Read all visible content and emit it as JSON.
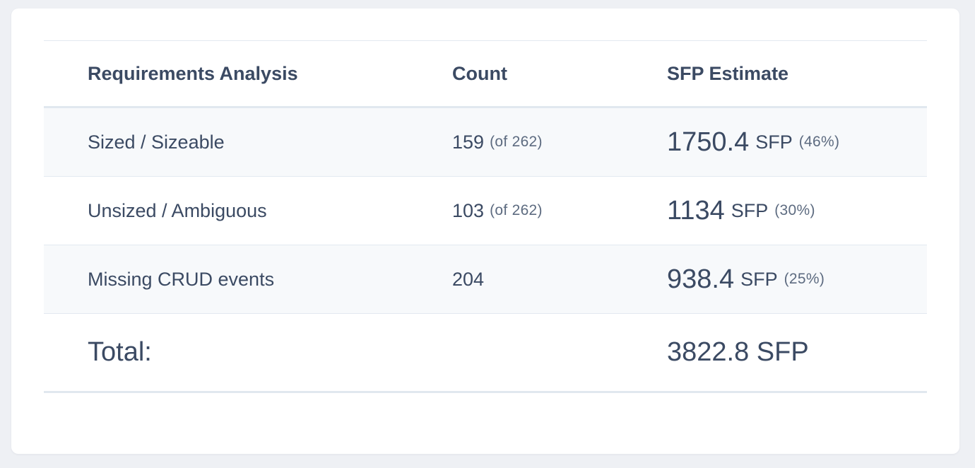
{
  "table": {
    "headers": {
      "requirements": "Requirements Analysis",
      "count": "Count",
      "sfp": "SFP Estimate"
    },
    "rows": [
      {
        "label": "Sized / Sizeable",
        "count": "159",
        "count_of": "(of 262)",
        "sfp_value": "1750.4",
        "sfp_unit": "SFP",
        "sfp_pct": "(46%)"
      },
      {
        "label": "Unsized / Ambiguous",
        "count": "103",
        "count_of": "(of 262)",
        "sfp_value": "1134",
        "sfp_unit": "SFP",
        "sfp_pct": "(30%)"
      },
      {
        "label": "Missing CRUD events",
        "count": "204",
        "count_of": "",
        "sfp_value": "938.4",
        "sfp_unit": "SFP",
        "sfp_pct": "(25%)"
      }
    ],
    "total": {
      "label": "Total:",
      "value": "3822.8 SFP"
    }
  }
}
